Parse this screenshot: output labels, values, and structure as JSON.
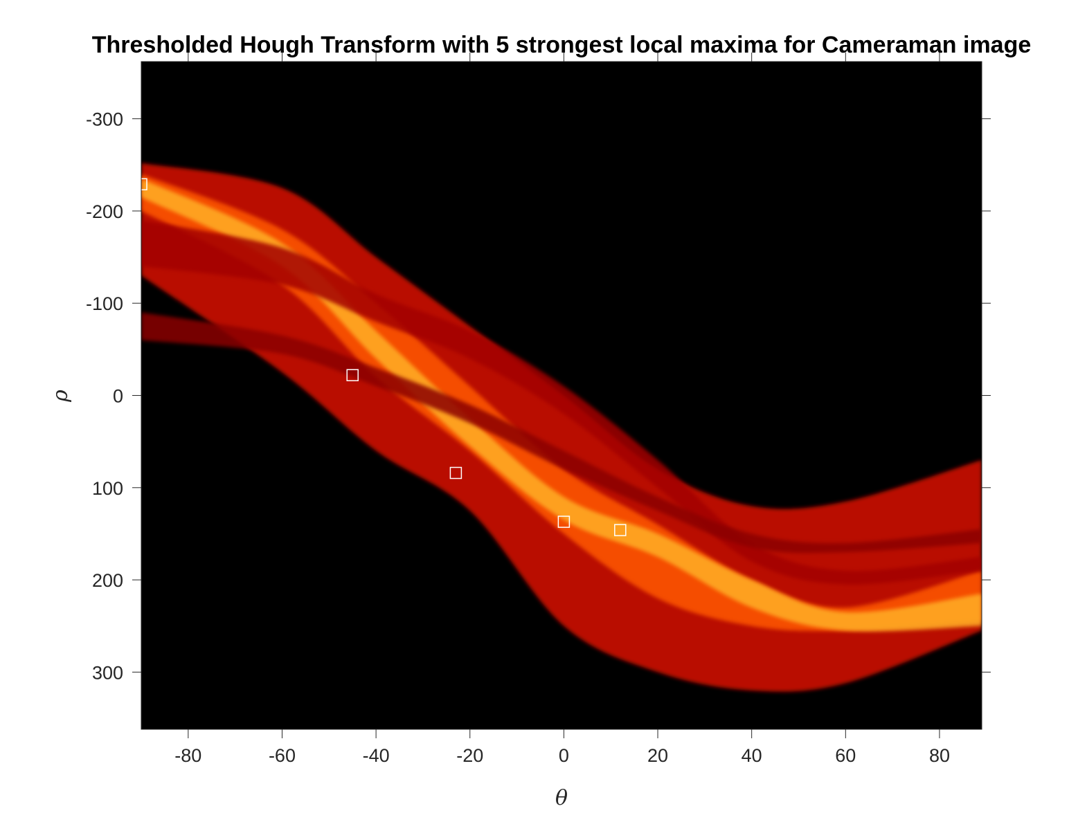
{
  "chart_data": {
    "type": "heatmap",
    "title": "Thresholded Hough Transform with 5 strongest local maxima for Cameraman image",
    "xlabel": "θ",
    "ylabel": "ρ",
    "xlim": [
      -90,
      89
    ],
    "ylim": [
      -362,
      362
    ],
    "y_reversed": true,
    "x_ticks": [
      -80,
      -60,
      -40,
      -20,
      0,
      20,
      40,
      60,
      80
    ],
    "y_ticks": [
      -300,
      -200,
      -100,
      0,
      100,
      200,
      300
    ],
    "colormap": [
      "#000000",
      "#8b0000",
      "#ff2200",
      "#ff7a00",
      "#ffd23a"
    ],
    "background": "#000000",
    "bands": [
      {
        "theta": [
          -90,
          -60,
          -40,
          -20,
          0,
          20,
          40,
          60,
          89
        ],
        "rho_top": [
          -252,
          -225,
          -150,
          -75,
          0,
          80,
          120,
          115,
          70
        ],
        "rho_bottom": [
          -130,
          -25,
          60,
          125,
          250,
          300,
          320,
          312,
          255
        ],
        "intensity": 0.35
      },
      {
        "theta": [
          -90,
          -60,
          -40,
          -20,
          0,
          20,
          40,
          60,
          89
        ],
        "rho_top": [
          -240,
          -180,
          -100,
          -10,
          80,
          140,
          200,
          230,
          190
        ],
        "rho_bottom": [
          -200,
          -120,
          -20,
          60,
          150,
          220,
          250,
          255,
          245
        ],
        "intensity": 0.65
      },
      {
        "theta": [
          -90,
          -60,
          -40,
          -20,
          0,
          20,
          40,
          60,
          89
        ],
        "rho_top": [
          -235,
          -165,
          -70,
          25,
          110,
          150,
          200,
          235,
          215
        ],
        "rho_bottom": [
          -215,
          -140,
          -40,
          55,
          135,
          175,
          230,
          255,
          250
        ],
        "intensity": 0.9
      },
      {
        "theta": [
          -90,
          -60,
          -40,
          -20,
          0,
          20,
          40,
          60,
          89
        ],
        "rho_top": [
          -190,
          -160,
          -110,
          -70,
          -10,
          70,
          160,
          190,
          175
        ],
        "rho_bottom": [
          -140,
          -120,
          -80,
          -40,
          20,
          100,
          180,
          205,
          190
        ],
        "intensity": 0.3
      },
      {
        "theta": [
          -90,
          -60,
          -40,
          -20,
          0,
          20,
          40,
          60,
          89
        ],
        "rho_top": [
          -90,
          -65,
          -30,
          10,
          60,
          110,
          150,
          160,
          145
        ],
        "rho_bottom": [
          -60,
          -45,
          -10,
          30,
          80,
          125,
          165,
          170,
          160
        ],
        "intensity": 0.25
      }
    ],
    "series": [
      {
        "name": "",
        "theta": [
          -90,
          -45,
          -23,
          0,
          12
        ],
        "rho": [
          -229,
          -22,
          84,
          137,
          146
        ]
      }
    ]
  }
}
